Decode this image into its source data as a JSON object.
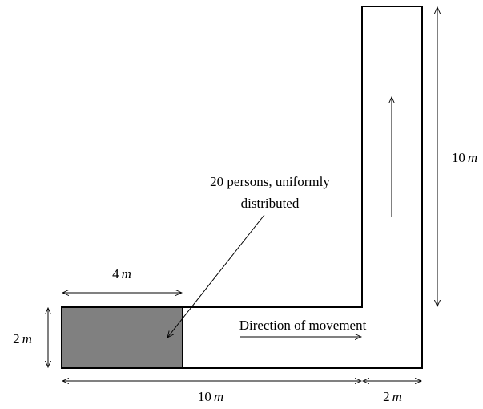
{
  "annotation": {
    "lines": [
      "20 persons, uniformly",
      "distributed"
    ]
  },
  "movement_label": "Direction of movement",
  "dimensions": [
    {
      "value": "4",
      "unit": "m"
    },
    {
      "value": "2",
      "unit": "m"
    },
    {
      "value": "10",
      "unit": "m"
    },
    {
      "value": "2",
      "unit": "m"
    },
    {
      "value": "10",
      "unit": "m"
    }
  ]
}
